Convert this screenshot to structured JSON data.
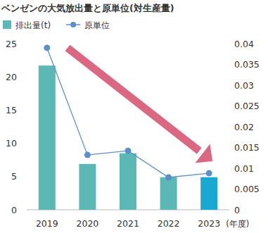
{
  "chart_data": {
    "type": "bar",
    "title": "ベンゼンの大気放出量と原単位(対生産量)",
    "xlabel": "(年度)",
    "categories": [
      "2019",
      "2020",
      "2021",
      "2022",
      "2023"
    ],
    "series": [
      {
        "name": "排出量(t)",
        "type": "bar",
        "colors": [
          "#5bb8b4",
          "#5bb8b4",
          "#5bb8b4",
          "#5bb8b4",
          "#1aa8d2"
        ],
        "values": [
          21.7,
          6.9,
          8.5,
          4.9,
          4.9
        ]
      },
      {
        "name": "原単位",
        "type": "line",
        "axis": "y2",
        "color": "#5b8fc6",
        "marker": "circle",
        "values": [
          0.039,
          0.0132,
          0.0142,
          0.0078,
          0.0088
        ]
      }
    ],
    "ylim": [
      0,
      25
    ],
    "yticks": [
      0,
      5,
      10,
      15,
      20,
      25
    ],
    "y2lim": [
      0,
      0.04
    ],
    "y2ticks": [
      0,
      0.005,
      0.01,
      0.015,
      0.02,
      0.025,
      0.03,
      0.035,
      0.04
    ],
    "legend": "top-left",
    "grid": false
  }
}
